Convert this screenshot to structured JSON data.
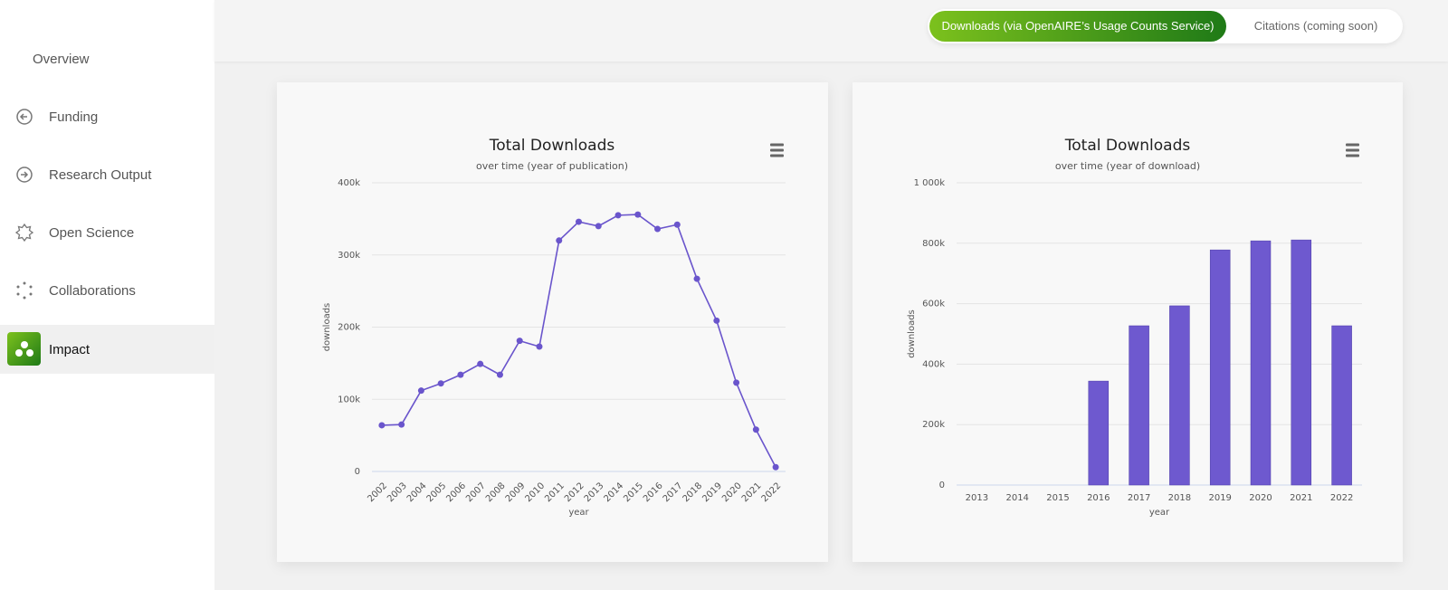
{
  "sidebar": {
    "items": [
      "Overview",
      "Funding",
      "Research Output",
      "Open Science",
      "Collaborations",
      "Impact"
    ]
  },
  "tabs": [
    "Downloads (via OpenAIRE’s Usage Counts Service)",
    "Citations (coming soon)"
  ],
  "chart_data": [
    {
      "type": "line",
      "title": "Total Downloads",
      "subtitle": "over time (year of publication)",
      "x_label": "year",
      "y_label": "downloads",
      "color": "#6a55cc",
      "grid": true,
      "categories": [
        "2002",
        "2003",
        "2004",
        "2005",
        "2006",
        "2007",
        "2008",
        "2009",
        "2010",
        "2011",
        "2012",
        "2013",
        "2014",
        "2015",
        "2016",
        "2017",
        "2018",
        "2019",
        "2020",
        "2021",
        "2022"
      ],
      "values": [
        64000,
        65000,
        112000,
        122000,
        134000,
        149000,
        134000,
        181000,
        173000,
        320000,
        346000,
        340000,
        355000,
        356000,
        336000,
        342000,
        267000,
        209000,
        123000,
        58000,
        6000
      ],
      "ylim": [
        0,
        400000
      ],
      "yticks": [
        0,
        {
          "value": 100000,
          "label": "100k"
        },
        {
          "value": 200000,
          "label": "200k"
        },
        {
          "value": 300000,
          "label": "300k"
        },
        {
          "value": 400000,
          "label": "400k"
        }
      ]
    },
    {
      "type": "bar",
      "title": "Total Downloads",
      "subtitle": "over time (year of download)",
      "x_label": "year",
      "y_label": "downloads",
      "color": "#6e59cf",
      "grid": true,
      "categories": [
        "2013",
        "2014",
        "2015",
        "2016",
        "2017",
        "2018",
        "2019",
        "2020",
        "2021",
        "2022"
      ],
      "values": [
        0,
        0,
        0,
        344000,
        527000,
        593000,
        778000,
        808000,
        811000,
        527000
      ],
      "ylim": [
        0,
        1000000
      ],
      "yticks": [
        0,
        {
          "value": 200000,
          "label": "200k"
        },
        {
          "value": 400000,
          "label": "400k"
        },
        {
          "value": 600000,
          "label": "600k"
        },
        {
          "value": 800000,
          "label": "800k"
        },
        {
          "value": 1000000,
          "label": "1 000k"
        }
      ]
    }
  ]
}
